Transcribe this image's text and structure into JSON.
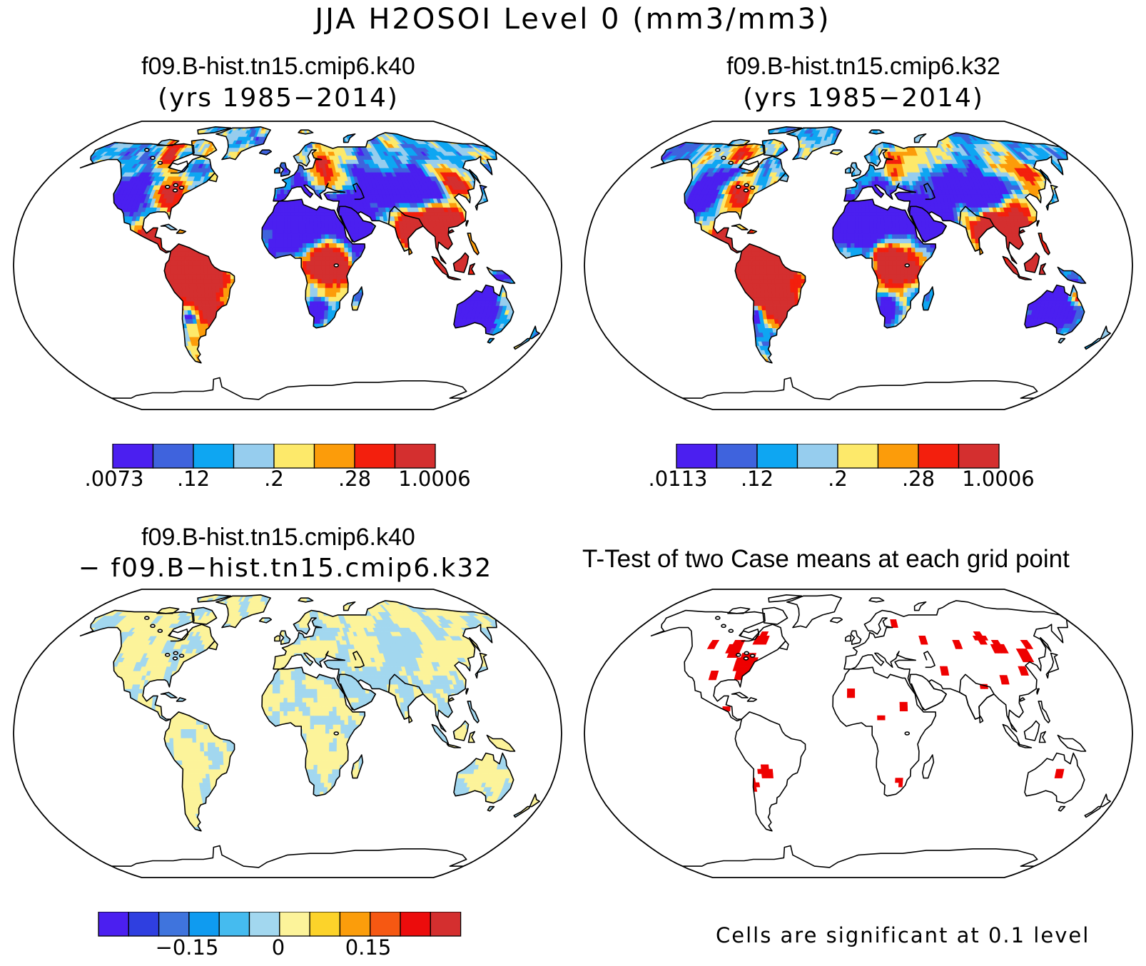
{
  "figure": {
    "title": "JJA H2OSOI Level 0 (mm3/mm3)"
  },
  "colors": {
    "seq8": [
      "#4b1ff0",
      "#3f63dd",
      "#0ea6f2",
      "#96cdee",
      "#fde96a",
      "#fc9c0a",
      "#f31f0d",
      "#d42f2f"
    ],
    "div12": [
      "#4b1ff0",
      "#2f3fe0",
      "#3f74dd",
      "#0f9bf0",
      "#45bbef",
      "#a2d7ef",
      "#fcf39a",
      "#fcd32a",
      "#fb9d0b",
      "#f65812",
      "#ec0c0c",
      "#d42f2f"
    ],
    "ocean": "#ffffff",
    "coastline": "#000000",
    "significant": "#ee0000"
  },
  "panels": {
    "k40": {
      "title": "f09.B-hist.tn15.cmip6.k40",
      "subtitle": "(yrs 1985−2014)",
      "colorbar_labels": [
        ".0073",
        ".12",
        ".2",
        ".28",
        "1.0006"
      ]
    },
    "k32": {
      "title": "f09.B-hist.tn15.cmip6.k32",
      "subtitle": "(yrs 1985−2014)",
      "colorbar_labels": [
        ".0113",
        ".12",
        ".2",
        ".28",
        "1.0006"
      ]
    },
    "diff": {
      "title": "f09.B-hist.tn15.cmip6.k40",
      "subtitle": "− f09.B−hist.tn15.cmip6.k32",
      "colorbar_labels": [
        "−0.15",
        "0",
        "0.15"
      ]
    },
    "ttest": {
      "title": "T-Test of two Case means at each grid point",
      "footnote": "Cells are significant at 0.1 level"
    }
  }
}
